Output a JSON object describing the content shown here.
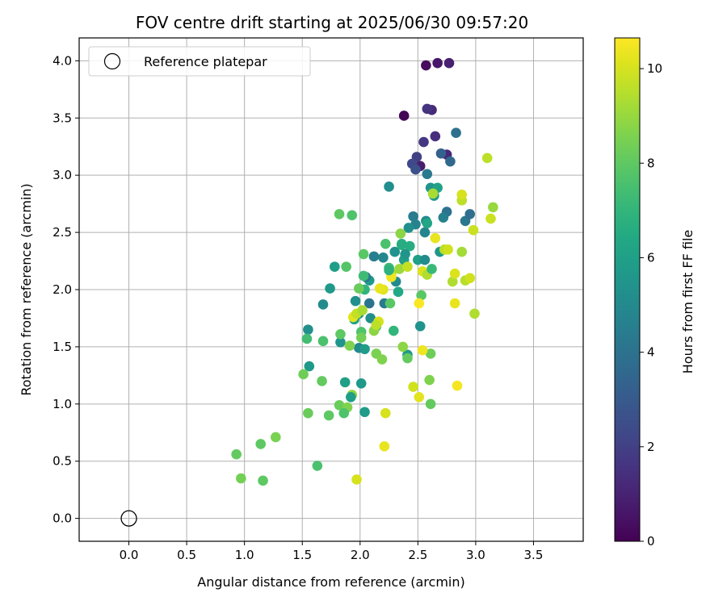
{
  "chart_data": {
    "type": "scatter",
    "title": "FOV centre drift starting at 2025/06/30 09:57:20",
    "xlabel": "Angular distance from reference (arcmin)",
    "ylabel": "Rotation from reference (arcmin)",
    "xlim": [
      -0.43,
      3.93
    ],
    "ylim": [
      -0.2,
      4.2
    ],
    "xticks": [
      0.0,
      0.5,
      1.0,
      1.5,
      2.0,
      2.5,
      3.0,
      3.5
    ],
    "xtick_labels": [
      "0.0",
      "0.5",
      "1.0",
      "1.5",
      "2.0",
      "2.5",
      "3.0",
      "3.5"
    ],
    "yticks": [
      0.0,
      0.5,
      1.0,
      1.5,
      2.0,
      2.5,
      3.0,
      3.5,
      4.0
    ],
    "ytick_labels": [
      "0.0",
      "0.5",
      "1.0",
      "1.5",
      "2.0",
      "2.5",
      "3.0",
      "3.5",
      "4.0"
    ],
    "grid": true,
    "legend": {
      "position": "top-left",
      "entries": [
        "Reference platepar"
      ]
    },
    "reference_point": {
      "x": 0.0,
      "y": 0.0,
      "label": "Reference platepar"
    },
    "colorbar": {
      "label": "Hours from first FF file",
      "colormap": "viridis",
      "range": [
        0,
        10.65
      ],
      "ticks": [
        0,
        2,
        4,
        6,
        8,
        10
      ],
      "tick_labels": [
        "0",
        "2",
        "4",
        "6",
        "8",
        "10"
      ]
    },
    "points": [
      [
        2.38,
        3.52,
        0.1
      ],
      [
        2.57,
        3.96,
        0.3
      ],
      [
        2.67,
        3.98,
        0.6
      ],
      [
        2.77,
        3.98,
        0.9
      ],
      [
        2.62,
        3.57,
        1.3
      ],
      [
        2.58,
        3.58,
        1.6
      ],
      [
        2.65,
        3.34,
        1.4
      ],
      [
        2.55,
        3.29,
        1.7
      ],
      [
        2.75,
        3.18,
        1.2
      ],
      [
        2.49,
        3.16,
        2.0
      ],
      [
        2.52,
        3.08,
        0.8
      ],
      [
        2.45,
        3.1,
        2.3
      ],
      [
        2.48,
        3.05,
        2.6
      ],
      [
        2.7,
        3.19,
        3.3
      ],
      [
        2.78,
        3.12,
        3.6
      ],
      [
        2.83,
        3.37,
        3.9
      ],
      [
        2.58,
        3.01,
        4.3
      ],
      [
        2.75,
        2.68,
        4.0
      ],
      [
        2.72,
        2.63,
        4.6
      ],
      [
        2.91,
        2.6,
        4.2
      ],
      [
        2.95,
        2.66,
        3.8
      ],
      [
        2.46,
        2.64,
        4.4
      ],
      [
        2.48,
        2.57,
        4.7
      ],
      [
        2.56,
        2.5,
        4.8
      ],
      [
        2.57,
        2.6,
        5.0
      ],
      [
        2.42,
        2.54,
        5.3
      ],
      [
        2.69,
        2.33,
        5.6
      ],
      [
        2.61,
        2.89,
        5.5
      ],
      [
        2.67,
        2.89,
        6.1
      ],
      [
        2.64,
        2.82,
        5.8
      ],
      [
        2.25,
        2.9,
        5.2
      ],
      [
        2.58,
        2.58,
        6.3
      ],
      [
        2.43,
        2.38,
        6.6
      ],
      [
        2.3,
        2.33,
        5.4
      ],
      [
        2.38,
        2.26,
        5.9
      ],
      [
        2.5,
        2.26,
        6.0
      ],
      [
        2.56,
        2.26,
        5.1
      ],
      [
        2.36,
        2.39,
        6.8
      ],
      [
        2.25,
        2.19,
        7.2
      ],
      [
        2.2,
        2.28,
        4.9
      ],
      [
        2.22,
        2.4,
        7.6
      ],
      [
        2.12,
        2.29,
        4.5
      ],
      [
        2.08,
        2.08,
        5.7
      ],
      [
        2.05,
        2.11,
        4.4
      ],
      [
        2.31,
        2.07,
        5.0
      ],
      [
        2.33,
        1.98,
        6.4
      ],
      [
        1.96,
        1.9,
        5.3
      ],
      [
        2.08,
        1.88,
        4.1
      ],
      [
        2.21,
        1.88,
        4.3
      ],
      [
        1.99,
        1.79,
        5.5
      ],
      [
        1.95,
        1.74,
        6.0
      ],
      [
        2.09,
        1.75,
        5.2
      ],
      [
        1.78,
        2.2,
        5.9
      ],
      [
        1.74,
        2.01,
        5.7
      ],
      [
        1.68,
        1.87,
        5.1
      ],
      [
        1.88,
        2.2,
        7.8
      ],
      [
        1.82,
        2.66,
        8.0
      ],
      [
        1.93,
        2.65,
        7.7
      ],
      [
        2.03,
        2.31,
        7.9
      ],
      [
        2.03,
        2.12,
        7.3
      ],
      [
        2.04,
        2.0,
        6.9
      ],
      [
        1.99,
        2.01,
        8.2
      ],
      [
        1.99,
        1.49,
        5.0
      ],
      [
        1.83,
        1.54,
        5.5
      ],
      [
        2.04,
        1.48,
        5.8
      ],
      [
        2.14,
        1.68,
        5.9
      ],
      [
        2.29,
        1.64,
        7.0
      ],
      [
        2.52,
        1.68,
        5.4
      ],
      [
        2.61,
        1.44,
        8.3
      ],
      [
        2.41,
        1.43,
        5.6
      ],
      [
        2.37,
        1.5,
        8.8
      ],
      [
        2.41,
        1.4,
        8.1
      ],
      [
        1.55,
        1.65,
        5.3
      ],
      [
        1.54,
        1.57,
        7.4
      ],
      [
        1.68,
        1.55,
        7.6
      ],
      [
        1.83,
        1.61,
        8.0
      ],
      [
        2.01,
        1.63,
        7.7
      ],
      [
        2.01,
        1.58,
        8.4
      ],
      [
        2.12,
        1.64,
        8.8
      ],
      [
        1.91,
        1.51,
        8.6
      ],
      [
        1.56,
        1.33,
        5.7
      ],
      [
        1.51,
        1.26,
        8.3
      ],
      [
        1.67,
        1.2,
        8.1
      ],
      [
        1.87,
        1.19,
        6.0
      ],
      [
        2.01,
        1.18,
        5.7
      ],
      [
        2.14,
        1.44,
        8.5
      ],
      [
        2.19,
        1.39,
        8.6
      ],
      [
        1.93,
        1.08,
        8.9
      ],
      [
        1.92,
        1.06,
        5.9
      ],
      [
        1.82,
        0.99,
        8.2
      ],
      [
        1.89,
        0.97,
        8.6
      ],
      [
        1.73,
        0.9,
        8.0
      ],
      [
        1.55,
        0.92,
        8.2
      ],
      [
        1.86,
        0.92,
        7.7
      ],
      [
        2.04,
        0.93,
        5.8
      ],
      [
        2.26,
        1.88,
        7.9
      ],
      [
        2.2,
        2.0,
        10.2
      ],
      [
        2.27,
        2.14,
        9.6
      ],
      [
        2.27,
        2.11,
        10.4
      ],
      [
        2.34,
        2.18,
        9.1
      ],
      [
        2.41,
        2.2,
        9.7
      ],
      [
        2.54,
        2.16,
        10.1
      ],
      [
        2.58,
        2.13,
        9.4
      ],
      [
        2.53,
        1.95,
        7.9
      ],
      [
        2.62,
        2.18,
        7.2
      ],
      [
        2.65,
        2.45,
        10.3
      ],
      [
        2.63,
        2.84,
        9.3
      ],
      [
        2.73,
        2.35,
        9.5
      ],
      [
        2.76,
        2.35,
        9.9
      ],
      [
        2.88,
        2.33,
        9.2
      ],
      [
        2.88,
        2.78,
        9.6
      ],
      [
        2.88,
        2.83,
        10.0
      ],
      [
        2.98,
        2.52,
        9.8
      ],
      [
        3.1,
        3.15,
        9.6
      ],
      [
        3.13,
        2.62,
        9.8
      ],
      [
        3.15,
        2.72,
        9.0
      ],
      [
        2.8,
        2.07,
        9.4
      ],
      [
        2.82,
        2.14,
        10.1
      ],
      [
        2.91,
        2.08,
        9.5
      ],
      [
        2.95,
        2.1,
        9.9
      ],
      [
        2.82,
        1.88,
        10.3
      ],
      [
        2.99,
        1.79,
        9.4
      ],
      [
        2.51,
        1.88,
        10.6
      ],
      [
        2.16,
        1.72,
        10.0
      ],
      [
        2.14,
        1.69,
        9.6
      ],
      [
        1.94,
        1.76,
        10.2
      ],
      [
        1.97,
        1.79,
        9.7
      ],
      [
        2.02,
        1.82,
        9.3
      ],
      [
        2.54,
        1.47,
        10.4
      ],
      [
        2.6,
        1.21,
        8.6
      ],
      [
        2.46,
        1.15,
        9.9
      ],
      [
        2.51,
        1.06,
        10.2
      ],
      [
        2.61,
        1.0,
        8.1
      ],
      [
        2.84,
        1.16,
        10.5
      ],
      [
        2.22,
        0.92,
        10.0
      ],
      [
        2.21,
        0.63,
        10.3
      ],
      [
        1.97,
        0.34,
        10.0
      ],
      [
        0.93,
        0.56,
        8.1
      ],
      [
        1.14,
        0.65,
        8.0
      ],
      [
        1.27,
        0.71,
        8.5
      ],
      [
        0.97,
        0.35,
        8.4
      ],
      [
        1.16,
        0.33,
        8.0
      ],
      [
        1.63,
        0.46,
        7.6
      ],
      [
        2.35,
        2.49,
        8.8
      ],
      [
        2.36,
        2.4,
        6.6
      ],
      [
        2.39,
        2.31,
        5.5
      ],
      [
        2.17,
        2.01,
        10.3
      ],
      [
        2.25,
        2.17,
        6.8
      ]
    ]
  }
}
